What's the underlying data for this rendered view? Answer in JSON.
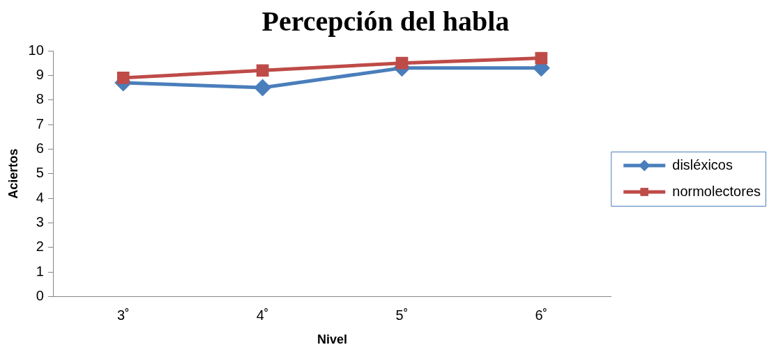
{
  "chart_data": {
    "type": "line",
    "title": "Percepción del habla",
    "xlabel": "Nivel",
    "ylabel": "Aciertos",
    "categories": [
      "3˚",
      "4˚",
      "5˚",
      "6˚"
    ],
    "series": [
      {
        "name": "disléxicos",
        "color": "#4a7ebb",
        "marker": "diamond",
        "values": [
          8.7,
          8.5,
          9.3,
          9.3
        ]
      },
      {
        "name": "normolectores",
        "color": "#be4b48",
        "marker": "square",
        "values": [
          8.9,
          9.2,
          9.5,
          9.7
        ]
      }
    ],
    "ylim": [
      0,
      10
    ],
    "yticks": [
      0,
      1,
      2,
      3,
      4,
      5,
      6,
      7,
      8,
      9,
      10
    ],
    "grid": false,
    "legend": "right",
    "line_style": "solid"
  }
}
